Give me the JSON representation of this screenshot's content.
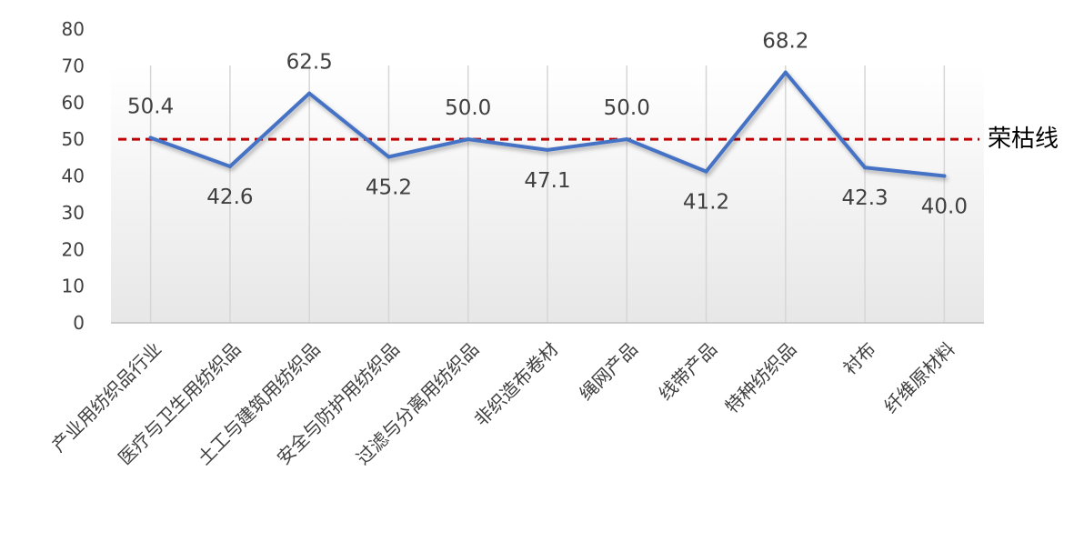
{
  "chart_data": {
    "type": "line",
    "categories": [
      "产业用纺织品行业",
      "医疗与卫生用纺织品",
      "土工与建筑用纺织品",
      "安全与防护用纺织品",
      "过滤与分离用纺织品",
      "非织造布卷材",
      "绳网产品",
      "线带产品",
      "特种纺织品",
      "衬布",
      "纤维原材料"
    ],
    "values": [
      50.4,
      42.6,
      62.5,
      45.2,
      50.0,
      47.1,
      50.0,
      41.2,
      68.2,
      42.3,
      40.0
    ],
    "data_labels": [
      "50.4",
      "42.6",
      "62.5",
      "45.2",
      "50.0",
      "47.1",
      "50.0",
      "41.2",
      "68.2",
      "42.3",
      "40.0"
    ],
    "label_position": [
      "above",
      "below",
      "above",
      "below",
      "above",
      "below",
      "above",
      "below",
      "above",
      "below",
      "below"
    ],
    "yticks": [
      "0",
      "10",
      "20",
      "30",
      "40",
      "50",
      "60",
      "70",
      "80"
    ],
    "ylim": [
      0,
      80
    ],
    "grid": "vertical",
    "reference_line": {
      "value": 50,
      "label": "荣枯线",
      "color": "#C00000",
      "style": "dashed"
    },
    "series_color": "#4472C4"
  }
}
